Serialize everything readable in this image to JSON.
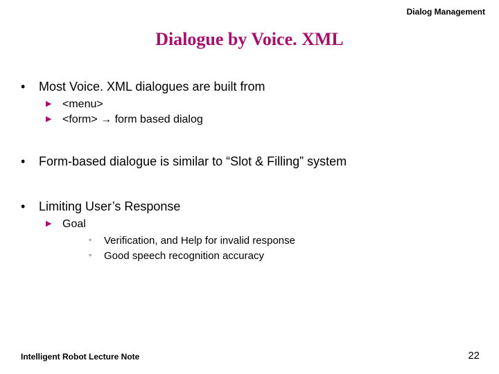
{
  "header": {
    "text": "Dialog Management"
  },
  "title": {
    "text": "Dialogue by Voice. XML",
    "color": "#a5116b"
  },
  "bullets": [
    {
      "text": "Most Voice. XML dialogues are built from",
      "subs": [
        {
          "text": "<menu>"
        },
        {
          "text": "<form> → form based dialog"
        }
      ]
    },
    {
      "text": "Form-based dialogue is similar to “Slot & Filling” system",
      "subs": []
    },
    {
      "text": "Limiting User’s Response",
      "subs": [
        {
          "text": "Goal",
          "subsubs": [
            {
              "text": "Verification, and Help for invalid response"
            },
            {
              "text": "Good speech recognition accuracy"
            }
          ]
        }
      ]
    }
  ],
  "colors": {
    "triangle": "#a5116b",
    "text": "#000000"
  },
  "footer": {
    "left": "Intelligent Robot Lecture Note",
    "page": "22"
  }
}
